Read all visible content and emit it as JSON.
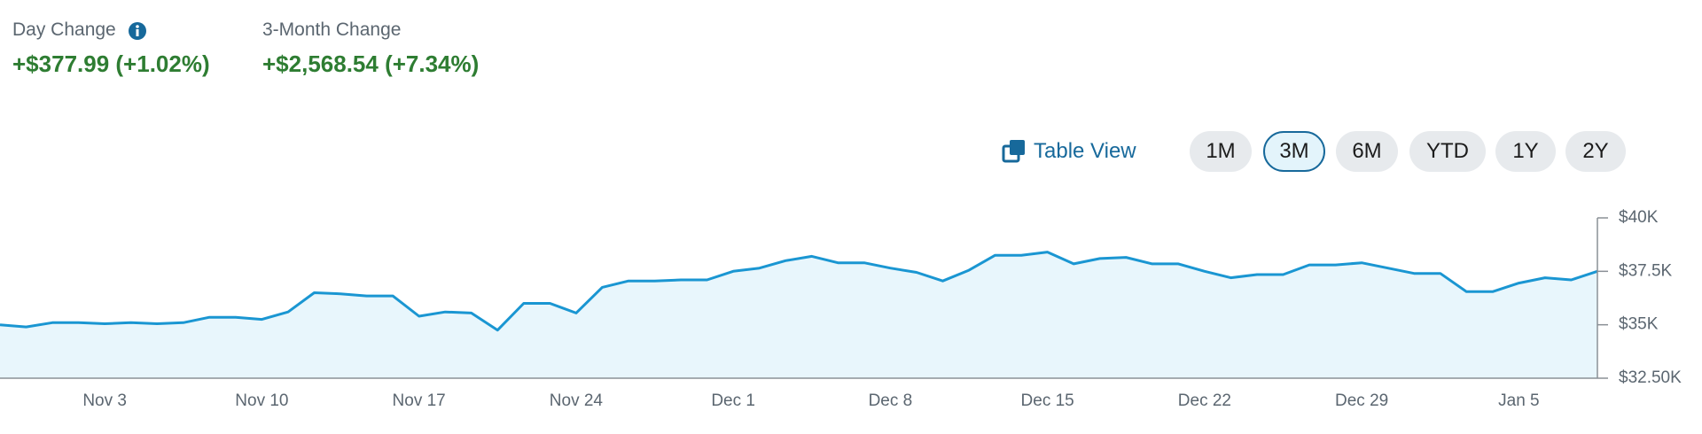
{
  "header": {
    "stats": [
      {
        "label": "Day Change",
        "value": "+$377.99 (+1.02%)"
      },
      {
        "label": "3-Month Change",
        "value": "+$2,568.54 (+7.34%)"
      }
    ],
    "table_view": "Table View",
    "ranges": [
      "1M",
      "3M",
      "6M",
      "YTD",
      "1Y",
      "2Y"
    ],
    "selected_range": "3M"
  },
  "chart_data": {
    "type": "area",
    "categories": [
      null,
      null,
      null,
      null,
      "Nov 3",
      null,
      null,
      null,
      null,
      null,
      "Nov 10",
      null,
      null,
      null,
      null,
      null,
      "Nov 17",
      null,
      null,
      null,
      null,
      null,
      "Nov 24",
      null,
      null,
      null,
      null,
      null,
      "Dec 1",
      null,
      null,
      null,
      null,
      null,
      "Dec 8",
      null,
      null,
      null,
      null,
      null,
      "Dec 15",
      null,
      null,
      null,
      null,
      null,
      "Dec 22",
      null,
      null,
      null,
      null,
      null,
      "Dec 29",
      null,
      null,
      null,
      null,
      null,
      "Jan 5",
      null,
      null,
      null
    ],
    "values": [
      35000,
      34900,
      35100,
      35100,
      35050,
      35100,
      35050,
      35100,
      35350,
      35350,
      35250,
      35600,
      36500,
      36450,
      36350,
      36350,
      35400,
      35600,
      35550,
      34750,
      36000,
      36000,
      35550,
      36750,
      37050,
      37050,
      37100,
      37100,
      37500,
      37650,
      38000,
      38200,
      37900,
      37900,
      37650,
      37450,
      37050,
      37550,
      38250,
      38250,
      38400,
      37850,
      38100,
      38150,
      37850,
      37850,
      37500,
      37200,
      37350,
      37350,
      37800,
      37800,
      37900,
      37650,
      37400,
      37400,
      36550,
      36550,
      36950,
      37200,
      37100,
      37500
    ],
    "color": "#1a96d2",
    "fill": "#e8f6fc",
    "ylim": [
      32500,
      40000
    ],
    "yticks": [
      {
        "value": 32500,
        "label": "$32.50K"
      },
      {
        "value": 35000,
        "label": "$35K"
      },
      {
        "value": 37500,
        "label": "$37.5K"
      },
      {
        "value": 40000,
        "label": "$40K"
      }
    ]
  }
}
